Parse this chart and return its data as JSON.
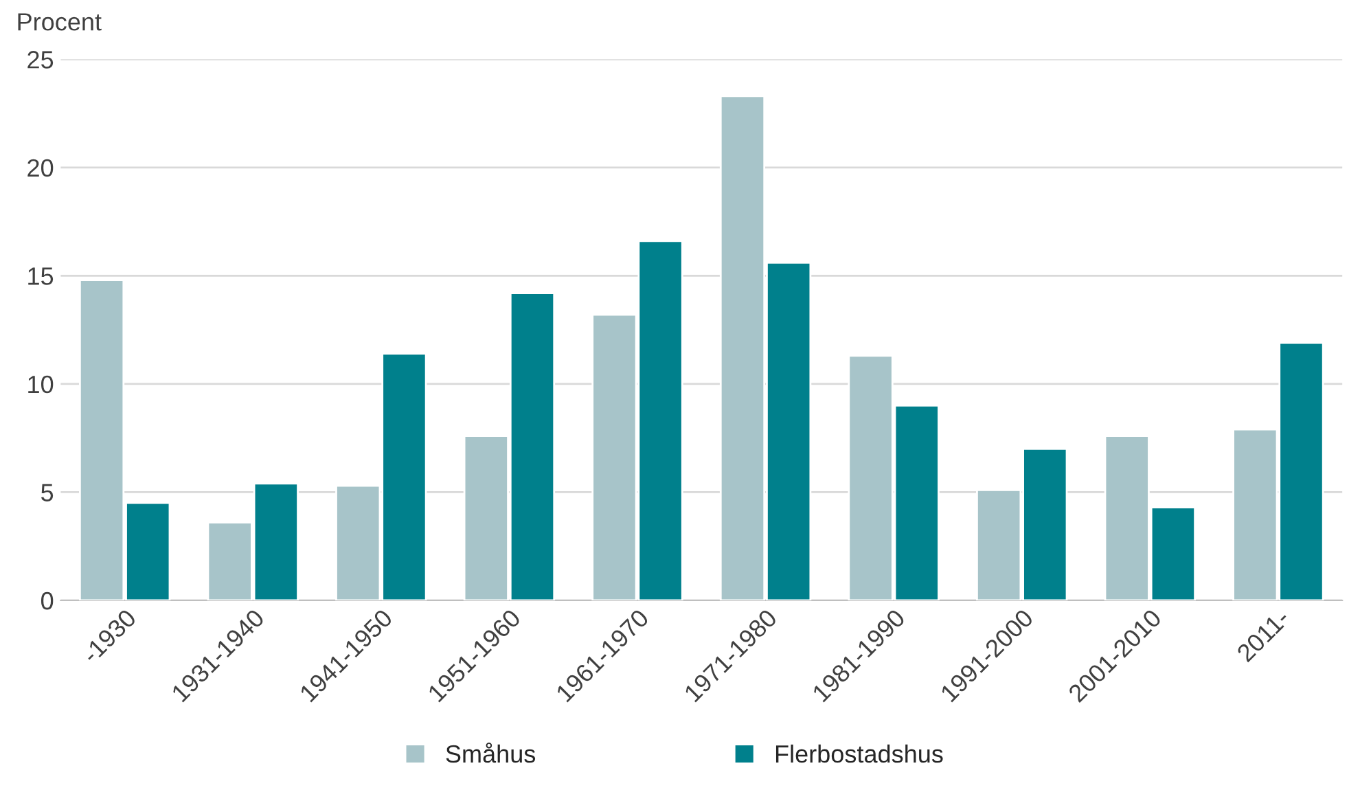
{
  "chart_data": {
    "type": "bar",
    "ylabel": "Procent",
    "categories": [
      "-1930",
      "1931-1940",
      "1941-1950",
      "1951-1960",
      "1961-1970",
      "1971-1980",
      "1981-1990",
      "1991-2000",
      "2001-2010",
      "2011-"
    ],
    "series": [
      {
        "name": "Småhus",
        "color": "#a7c4c9",
        "values": [
          14.8,
          3.6,
          5.3,
          7.6,
          13.2,
          23.3,
          11.3,
          5.1,
          7.6,
          7.9
        ]
      },
      {
        "name": "Flerbostadshus",
        "color": "#00808c",
        "values": [
          4.5,
          5.4,
          11.4,
          14.2,
          16.6,
          15.6,
          9.0,
          7.0,
          4.3,
          11.9
        ]
      }
    ],
    "ylim": [
      0,
      25
    ],
    "yticks": [
      0,
      5,
      10,
      15,
      20,
      25
    ],
    "grid": "y",
    "legend": "bottom"
  }
}
